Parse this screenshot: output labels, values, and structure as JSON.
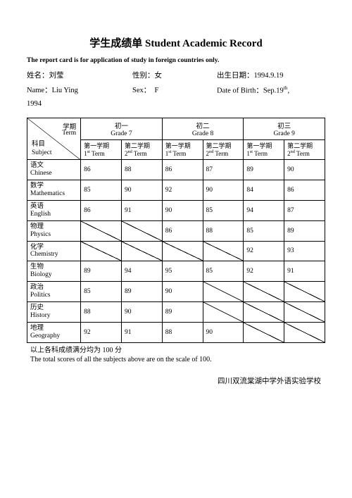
{
  "title": "学生成绩单 Student Academic Record",
  "subtitle": "The report card is for application of study in foreign countries only.",
  "info": {
    "name_cn_label": "姓名：",
    "name_cn": "刘莹",
    "gender_cn_label": "性别：",
    "gender_cn": "女",
    "dob_cn_label": "出生日期：",
    "dob_cn": "1994.9.19",
    "name_en_label": "Name：",
    "name_en": "Liu Ying",
    "sex_label": "Sex：",
    "sex": "F",
    "dob_en_label": "Date of Birth：",
    "dob_en_month": "Sep.19",
    "dob_en_suffix": "th",
    "dob_en_comma": ",",
    "year": "1994"
  },
  "table": {
    "diag": {
      "term_cn": "学期",
      "term_en": "Term",
      "subj_cn": "科目",
      "subj_en": "Subject"
    },
    "grades": [
      {
        "cn": "初一",
        "en": "Grade 7"
      },
      {
        "cn": "初二",
        "en": "Grade 8"
      },
      {
        "cn": "初三",
        "en": "Grade 9"
      }
    ],
    "terms": {
      "t1_cn": "第一学期",
      "t1_en_a": "1",
      "t1_en_sup": "st",
      "t1_en_b": " Term",
      "t2_cn": "第二学期",
      "t2_en_a": "2",
      "t2_en_sup": "nd",
      "t2_en_b": " Term"
    },
    "subjects": [
      {
        "cn": "语文",
        "en": "Chinese",
        "scores": [
          "86",
          "88",
          "86",
          "87",
          "89",
          "90"
        ]
      },
      {
        "cn": "数学",
        "en": "Mathematics",
        "scores": [
          "85",
          "90",
          "92",
          "90",
          "84",
          "86"
        ]
      },
      {
        "cn": "英语",
        "en": "English",
        "scores": [
          "86",
          "91",
          "90",
          "85",
          "94",
          "87"
        ]
      },
      {
        "cn": "物理",
        "en": "Physics",
        "scores": [
          "",
          "",
          "86",
          "88",
          "85",
          "89"
        ]
      },
      {
        "cn": "化学",
        "en": "Chemistry",
        "scores": [
          "",
          "",
          "",
          "",
          "92",
          "93"
        ]
      },
      {
        "cn": "生物",
        "en": "Biology",
        "scores": [
          "89",
          "94",
          "95",
          "85",
          "92",
          "91"
        ]
      },
      {
        "cn": "政治",
        "en": "Politics",
        "scores": [
          "85",
          "89",
          "90",
          "",
          "",
          ""
        ]
      },
      {
        "cn": "历史",
        "en": "History",
        "scores": [
          "88",
          "90",
          "89",
          "",
          "",
          ""
        ]
      },
      {
        "cn": "地理",
        "en": "Geography",
        "scores": [
          "92",
          "91",
          "88",
          "90",
          "",
          ""
        ]
      }
    ]
  },
  "footnote_cn": "以上各科成绩满分均为 100 分",
  "footnote_en": "The total scores of all the subjects above are on the scale of 100.",
  "school": "四川双流棠湖中学外语实验学校"
}
